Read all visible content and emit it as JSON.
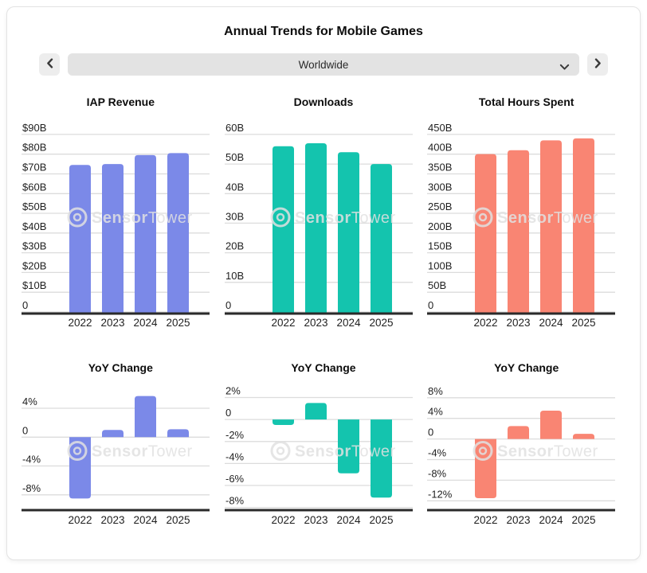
{
  "header": {
    "title": "Annual Trends for Mobile Games"
  },
  "nav": {
    "selected_region": "Worldwide",
    "prev_icon": "chevron-left",
    "next_icon": "chevron-right",
    "dropdown_icon": "chevron-down"
  },
  "watermark": {
    "brand_bold": "Sensor",
    "brand_light": "Tower",
    "logo_icon": "sensortower-circle-logo"
  },
  "colors": {
    "blue": "#7b89e8",
    "teal": "#14c4ae",
    "salmon": "#f98573",
    "gridline": "#dcdcdc",
    "axis": "#2a2a2a",
    "label": "#1f1f1f",
    "dropdown_bg": "#e3e3e3",
    "button_bg": "#ededed"
  },
  "chart_data": [
    {
      "type": "bar",
      "title": "IAP Revenue",
      "unit": "$B",
      "categories": [
        "2022",
        "2023",
        "2024",
        "2025"
      ],
      "values": [
        74.5,
        75,
        79.5,
        80.5
      ],
      "yticks": [
        {
          "v": 90,
          "label": "$90B"
        },
        {
          "v": 80,
          "label": "$80B"
        },
        {
          "v": 70,
          "label": "$70B"
        },
        {
          "v": 60,
          "label": "$60B"
        },
        {
          "v": 50,
          "label": "$50B"
        },
        {
          "v": 40,
          "label": "$40B"
        },
        {
          "v": 30,
          "label": "$30B"
        },
        {
          "v": 20,
          "label": "$20B"
        },
        {
          "v": 10,
          "label": "$10B"
        },
        {
          "v": 0,
          "label": "0"
        }
      ],
      "ylim": [
        0,
        96
      ],
      "grid": true,
      "legend": "none",
      "row": "top",
      "color": "#7b89e8"
    },
    {
      "type": "bar",
      "title": "Downloads",
      "unit": "B",
      "categories": [
        "2022",
        "2023",
        "2024",
        "2025"
      ],
      "values": [
        56,
        57,
        54,
        50
      ],
      "yticks": [
        {
          "v": 60,
          "label": "60B"
        },
        {
          "v": 50,
          "label": "50B"
        },
        {
          "v": 40,
          "label": "40B"
        },
        {
          "v": 30,
          "label": "30B"
        },
        {
          "v": 20,
          "label": "20B"
        },
        {
          "v": 10,
          "label": "10B"
        },
        {
          "v": 0,
          "label": "0"
        }
      ],
      "ylim": [
        0,
        64
      ],
      "grid": true,
      "legend": "none",
      "row": "top",
      "color": "#14c4ae"
    },
    {
      "type": "bar",
      "title": "Total Hours Spent",
      "unit": "B",
      "categories": [
        "2022",
        "2023",
        "2024",
        "2025"
      ],
      "values": [
        400,
        410,
        435,
        440
      ],
      "yticks": [
        {
          "v": 450,
          "label": "450B"
        },
        {
          "v": 400,
          "label": "400B"
        },
        {
          "v": 350,
          "label": "350B"
        },
        {
          "v": 300,
          "label": "300B"
        },
        {
          "v": 250,
          "label": "250B"
        },
        {
          "v": 200,
          "label": "200B"
        },
        {
          "v": 150,
          "label": "150B"
        },
        {
          "v": 100,
          "label": "100B"
        },
        {
          "v": 50,
          "label": "50B"
        },
        {
          "v": 0,
          "label": "0"
        }
      ],
      "ylim": [
        0,
        480
      ],
      "grid": true,
      "legend": "none",
      "row": "top",
      "color": "#f98573"
    },
    {
      "type": "bar",
      "title": "YoY Change",
      "unit": "%",
      "categories": [
        "2022",
        "2023",
        "2024",
        "2025"
      ],
      "values": [
        -8.5,
        1,
        5.7,
        1.1
      ],
      "yticks": [
        {
          "v": 4,
          "label": "4%"
        },
        {
          "v": 0,
          "label": "0"
        },
        {
          "v": -4,
          "label": "-4%"
        },
        {
          "v": -8,
          "label": "-8%"
        }
      ],
      "ylim": [
        -9.9,
        6.1
      ],
      "grid": true,
      "legend": "none",
      "row": "bottom",
      "color": "#7b89e8"
    },
    {
      "type": "bar",
      "title": "YoY Change",
      "unit": "%",
      "categories": [
        "2022",
        "2023",
        "2024",
        "2025"
      ],
      "values": [
        -0.5,
        1.5,
        -4.9,
        -7.1
      ],
      "yticks": [
        {
          "v": 2,
          "label": "2%"
        },
        {
          "v": 0,
          "label": "0"
        },
        {
          "v": -2,
          "label": "-2%"
        },
        {
          "v": -4,
          "label": "-4%"
        },
        {
          "v": -6,
          "label": "-6%"
        },
        {
          "v": -8,
          "label": "-8%"
        }
      ],
      "ylim": [
        -8.1,
        2.4
      ],
      "grid": true,
      "legend": "none",
      "row": "bottom",
      "color": "#14c4ae"
    },
    {
      "type": "bar",
      "title": "YoY Change",
      "unit": "%",
      "categories": [
        "2022",
        "2023",
        "2024",
        "2025"
      ],
      "values": [
        -11.5,
        2.5,
        5.5,
        1
      ],
      "yticks": [
        {
          "v": 8,
          "label": "8%"
        },
        {
          "v": 4,
          "label": "4%"
        },
        {
          "v": 0,
          "label": "0"
        },
        {
          "v": -4,
          "label": "-4%"
        },
        {
          "v": -8,
          "label": "-8%"
        },
        {
          "v": -12,
          "label": "-12%"
        }
      ],
      "ylim": [
        -13.5,
        8.9
      ],
      "grid": true,
      "legend": "none",
      "row": "bottom",
      "color": "#f98573"
    }
  ]
}
